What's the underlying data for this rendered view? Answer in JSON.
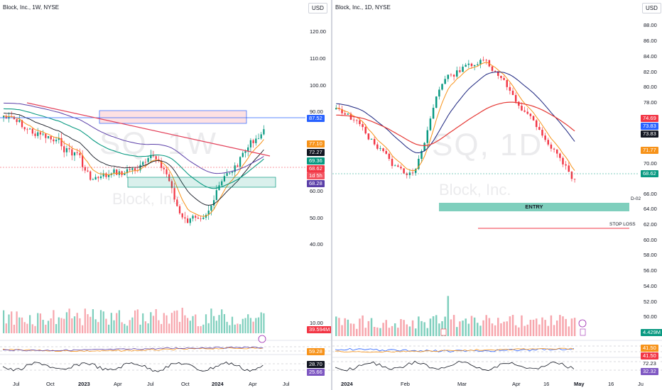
{
  "left": {
    "title": "Block, Inc., 1W, NYSE",
    "currency": "USD",
    "watermark": "SQ, 1W",
    "watermark_sub": "Block, Inc.",
    "price_axis": [
      "120.00",
      "110.00",
      "100.00",
      "90.00",
      "60.00",
      "50.00",
      "40.00",
      "10.00"
    ],
    "time_axis": [
      "Jul",
      "Oct",
      "2023",
      "Apr",
      "Jul",
      "Oct",
      "2024",
      "Apr",
      "Jul"
    ],
    "price_tags": [
      {
        "text": "87.52",
        "color": "#2962ff"
      },
      {
        "text": "77.10",
        "color": "#f7931a"
      },
      {
        "text": "72.27",
        "color": "#131722"
      },
      {
        "text": "69.36",
        "color": "#089981"
      },
      {
        "text": "68.62",
        "color": "#f23645"
      },
      {
        "text": "1d 5h",
        "color": "#f23645"
      },
      {
        "text": "68.28",
        "color": "#5b3fa8"
      },
      {
        "text": "39.594M",
        "color": "#f23645"
      },
      {
        "text": "59.28",
        "color": "#f7931a"
      },
      {
        "text": "28.70",
        "color": "#131722"
      },
      {
        "text": "25.66",
        "color": "#7e57c2"
      }
    ]
  },
  "right": {
    "title": "Block, Inc., 1D, NYSE",
    "currency": "USD",
    "watermark": "SQ, 1D",
    "watermark_sub": "Block, Inc.",
    "price_axis": [
      "88.00",
      "86.00",
      "84.00",
      "82.00",
      "80.00",
      "78.00",
      "70.00",
      "66.00",
      "64.00",
      "62.00",
      "60.00",
      "58.00",
      "56.00",
      "54.00",
      "52.00",
      "50.00"
    ],
    "time_axis": [
      "2024",
      "Feb",
      "Mar",
      "Apr",
      "16",
      "May",
      "16",
      "Ju"
    ],
    "price_tags": [
      {
        "text": "74.69",
        "color": "#f23645"
      },
      {
        "text": "73.83",
        "color": "#2962ff"
      },
      {
        "text": "73.83",
        "color": "#131722"
      },
      {
        "text": "71.77",
        "color": "#f7931a"
      },
      {
        "text": "68.62",
        "color": "#089981"
      },
      {
        "text": "4.429M",
        "color": "#089981"
      },
      {
        "text": "41.50",
        "color": "#f7931a"
      },
      {
        "text": "41.50",
        "color": "#f23645"
      },
      {
        "text": "72.23",
        "color": "#ffffff"
      },
      {
        "text": "32.32",
        "color": "#7e57c2"
      }
    ],
    "entry_label": "ENTRY",
    "stop_loss_label": "STOP LOSS",
    "d_label": "D-02",
    "event_marker": "E"
  },
  "colors": {
    "up": "#089981",
    "down": "#f23645",
    "vol_up": "#7fcfbd",
    "vol_down": "#f7a6ad",
    "ema_fast": "#f7931a",
    "ema_mid": "#131722",
    "ema_slow": "#089981",
    "ema_purple": "#5b3fa8",
    "trend": "#e3425b"
  }
}
